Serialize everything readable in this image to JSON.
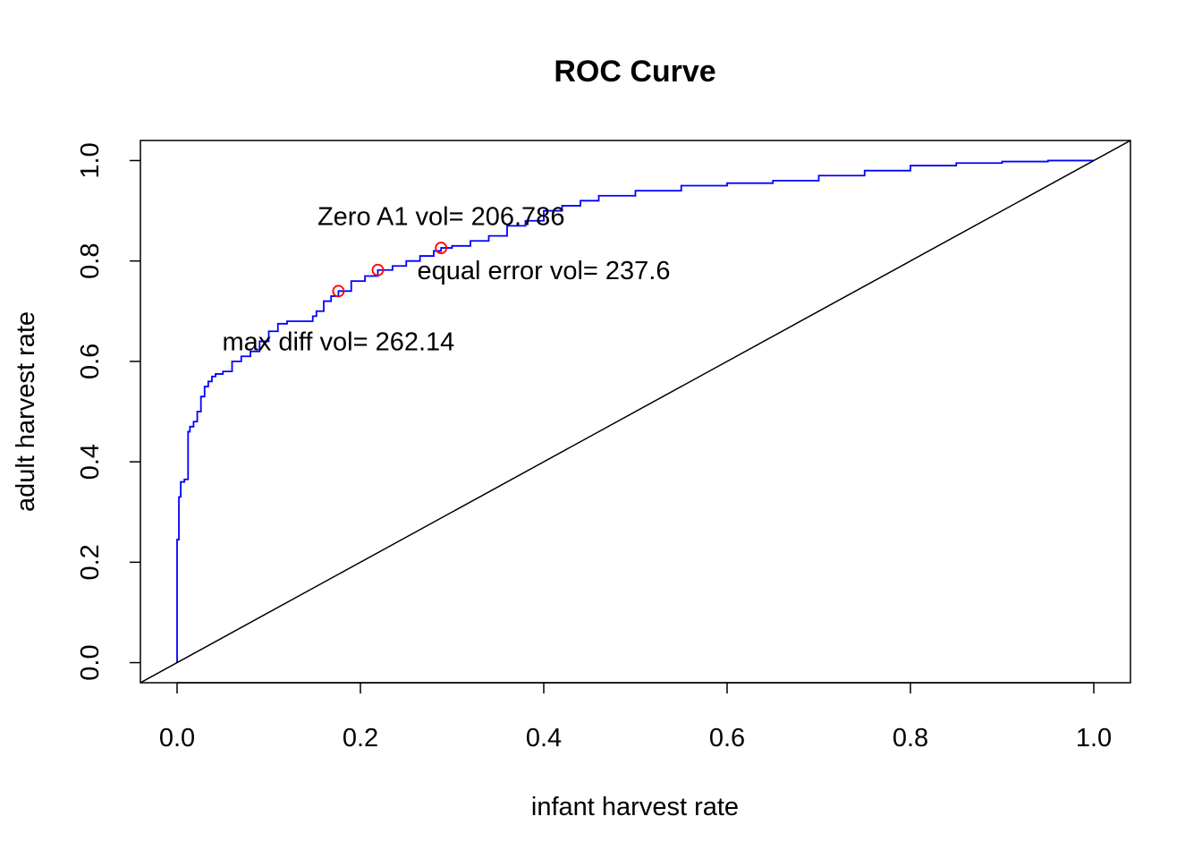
{
  "chart_data": {
    "type": "line",
    "title": "ROC Curve",
    "xlabel": "infant harvest rate",
    "ylabel": "adult harvest rate",
    "xlim": [
      -0.04,
      1.04
    ],
    "ylim": [
      -0.04,
      1.04
    ],
    "x_ticks": [
      "0.0",
      "0.2",
      "0.4",
      "0.6",
      "0.8",
      "1.0"
    ],
    "y_ticks": [
      "0.0",
      "0.2",
      "0.4",
      "0.6",
      "0.8",
      "1.0"
    ],
    "grid": false,
    "series": [
      {
        "style": "step",
        "color": "#0000ff",
        "x": [
          0.0,
          0.0,
          0.002,
          0.004,
          0.008,
          0.012,
          0.014,
          0.018,
          0.022,
          0.026,
          0.03,
          0.034,
          0.038,
          0.042,
          0.05,
          0.06,
          0.07,
          0.08,
          0.09,
          0.1,
          0.11,
          0.12,
          0.14,
          0.148,
          0.152,
          0.16,
          0.168,
          0.176,
          0.19,
          0.205,
          0.219,
          0.235,
          0.25,
          0.265,
          0.28,
          0.288,
          0.3,
          0.32,
          0.34,
          0.36,
          0.38,
          0.4,
          0.42,
          0.44,
          0.46,
          0.5,
          0.55,
          0.6,
          0.65,
          0.7,
          0.75,
          0.8,
          0.85,
          0.9,
          0.95,
          1.0
        ],
        "y": [
          0.0,
          0.245,
          0.33,
          0.36,
          0.365,
          0.46,
          0.47,
          0.48,
          0.5,
          0.53,
          0.55,
          0.56,
          0.57,
          0.575,
          0.58,
          0.6,
          0.61,
          0.62,
          0.64,
          0.66,
          0.675,
          0.68,
          0.68,
          0.69,
          0.7,
          0.72,
          0.73,
          0.74,
          0.76,
          0.77,
          0.782,
          0.79,
          0.8,
          0.81,
          0.82,
          0.826,
          0.83,
          0.84,
          0.85,
          0.87,
          0.88,
          0.9,
          0.91,
          0.92,
          0.93,
          0.94,
          0.95,
          0.955,
          0.96,
          0.97,
          0.98,
          0.99,
          0.995,
          0.998,
          1.0,
          1.0
        ]
      },
      {
        "style": "line",
        "color": "#000000",
        "x": [
          -0.04,
          1.04
        ],
        "y": [
          -0.04,
          1.04
        ]
      }
    ],
    "markers": [
      {
        "x": 0.176,
        "y": 0.74,
        "color": "#ff0000"
      },
      {
        "x": 0.219,
        "y": 0.782,
        "color": "#ff0000"
      },
      {
        "x": 0.288,
        "y": 0.826,
        "color": "#ff0000"
      }
    ],
    "annotations": [
      {
        "text": "max diff vol= 262.14",
        "x": 0.176,
        "y": 0.64
      },
      {
        "text": "equal error vol= 237.6",
        "x": 0.4,
        "y": 0.782
      },
      {
        "text": "Zero A1 vol= 206.786",
        "x": 0.288,
        "y": 0.889
      }
    ]
  }
}
